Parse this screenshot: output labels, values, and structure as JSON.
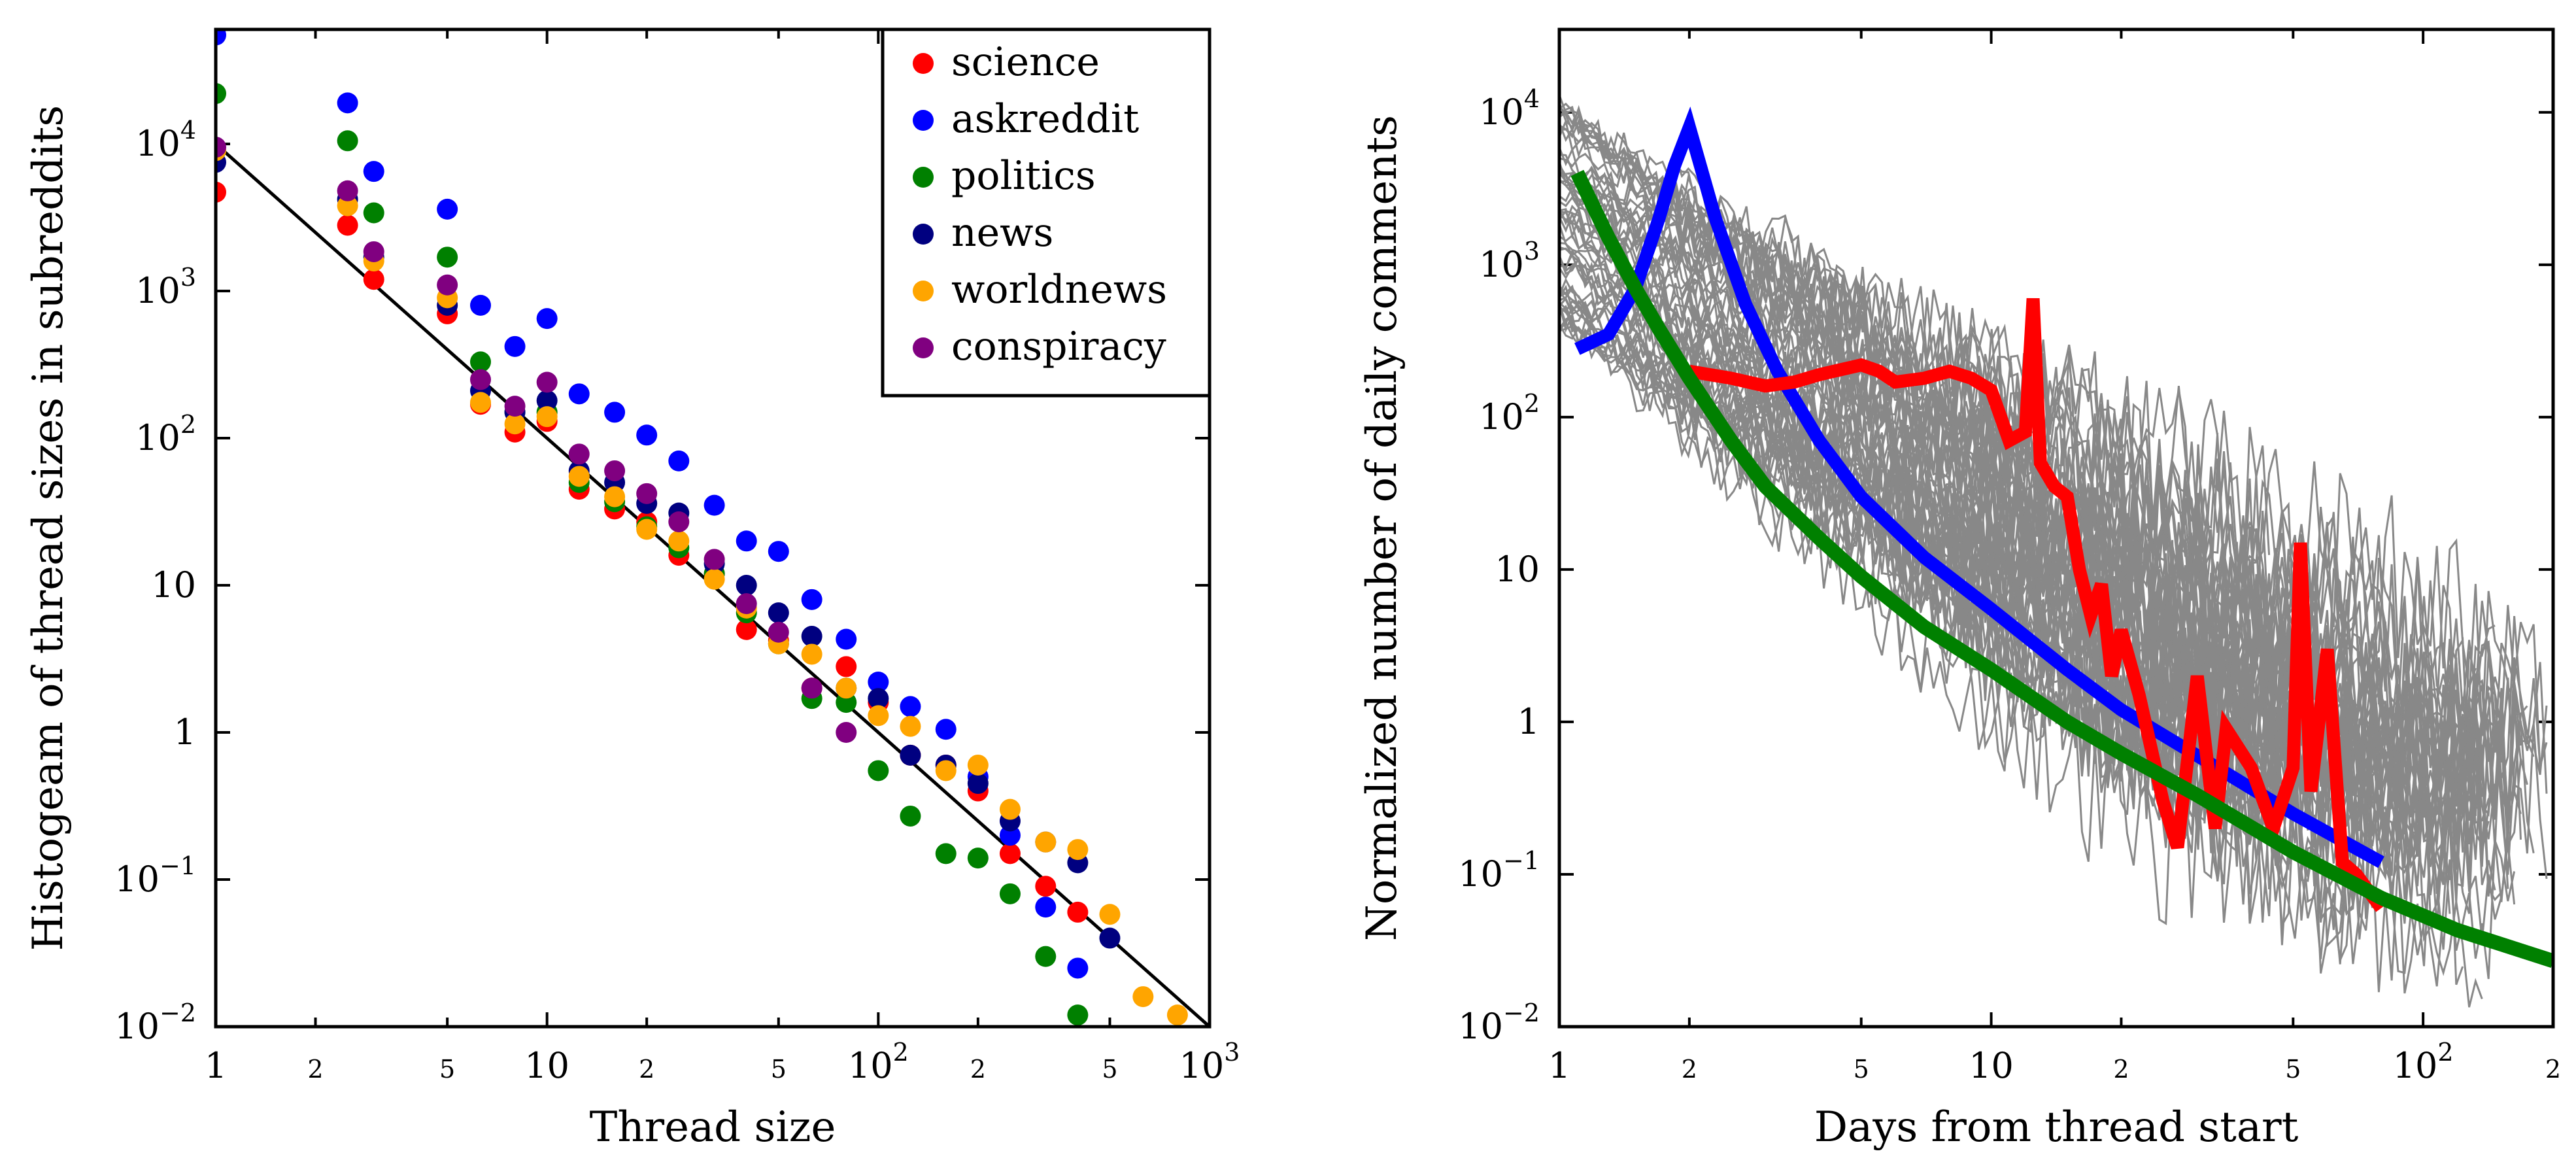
{
  "chart_data": [
    {
      "type": "scatter",
      "title": "",
      "xlabel": "Thread size",
      "ylabel": "Histogeam of thread sizes in subreddits",
      "xscale": "log",
      "yscale": "log",
      "xlim": [
        1,
        1000
      ],
      "ylim": [
        0.01,
        60000
      ],
      "x_ticks": [
        {
          "value": 1,
          "label": "1",
          "base": "",
          "exp": "",
          "major": true
        },
        {
          "value": 2,
          "label": "2",
          "base": "",
          "exp": "",
          "major": false
        },
        {
          "value": 5,
          "label": "5",
          "base": "",
          "exp": "",
          "major": false
        },
        {
          "value": 10,
          "label": "10",
          "base": "",
          "exp": "",
          "major": true
        },
        {
          "value": 20,
          "label": "2",
          "base": "",
          "exp": "",
          "major": false
        },
        {
          "value": 50,
          "label": "5",
          "base": "",
          "exp": "",
          "major": false
        },
        {
          "value": 100,
          "label": "",
          "base": "10",
          "exp": "2",
          "major": true
        },
        {
          "value": 200,
          "label": "2",
          "base": "",
          "exp": "",
          "major": false
        },
        {
          "value": 500,
          "label": "5",
          "base": "",
          "exp": "",
          "major": false
        },
        {
          "value": 1000,
          "label": "",
          "base": "10",
          "exp": "3",
          "major": true
        }
      ],
      "y_ticks": [
        {
          "value": 0.01,
          "label": "",
          "base": "10",
          "exp": "−2"
        },
        {
          "value": 0.1,
          "label": "",
          "base": "10",
          "exp": "−1"
        },
        {
          "value": 1,
          "label": "1",
          "base": "",
          "exp": ""
        },
        {
          "value": 10,
          "label": "10",
          "base": "",
          "exp": ""
        },
        {
          "value": 100,
          "label": "",
          "base": "10",
          "exp": "2"
        },
        {
          "value": 1000,
          "label": "",
          "base": "10",
          "exp": "3"
        },
        {
          "value": 10000,
          "label": "",
          "base": "10",
          "exp": "4"
        }
      ],
      "fit_line": {
        "x": [
          1,
          1000
        ],
        "y": [
          10000,
          0.01
        ],
        "color": "#000000"
      },
      "legend": {
        "position": "top-right"
      },
      "series": [
        {
          "name": "science",
          "color": "#ff0000",
          "x": [
            1,
            2.5,
            3,
            5,
            6.3,
            8,
            10,
            12.5,
            16,
            20,
            25,
            32,
            40,
            50,
            63,
            80,
            100,
            125,
            160,
            200,
            250,
            320,
            400
          ],
          "y": [
            4700,
            2800,
            1200,
            700,
            170,
            110,
            130,
            45,
            33,
            27,
            16,
            12,
            5,
            4.2,
            2,
            2.8,
            1.6,
            0.7,
            0.6,
            0.4,
            0.15,
            0.09,
            0.06
          ]
        },
        {
          "name": "askreddit",
          "color": "#0000ff",
          "x": [
            1,
            2.5,
            3,
            5,
            6.3,
            8,
            10,
            12.5,
            16,
            20,
            25,
            32,
            40,
            50,
            63,
            80,
            100,
            125,
            160,
            200,
            250,
            320,
            400
          ],
          "y": [
            55000,
            19000,
            6500,
            3600,
            800,
            420,
            650,
            200,
            150,
            105,
            70,
            35,
            20,
            17,
            8,
            4.3,
            2.2,
            1.5,
            1.05,
            0.5,
            0.2,
            0.065,
            0.025
          ]
        },
        {
          "name": "politics",
          "color": "#008000",
          "x": [
            1,
            2.5,
            3,
            5,
            6.3,
            8,
            10,
            12.5,
            16,
            20,
            25,
            32,
            40,
            50,
            63,
            80,
            100,
            125,
            160,
            200,
            250,
            320,
            400
          ],
          "y": [
            22000,
            10500,
            3400,
            1700,
            330,
            150,
            150,
            50,
            37,
            25,
            18,
            12,
            6.5,
            4,
            1.7,
            1.6,
            0.55,
            0.27,
            0.15,
            0.14,
            0.08,
            0.03,
            0.012
          ]
        },
        {
          "name": "news",
          "color": "#000080",
          "x": [
            1,
            2.5,
            3,
            5,
            6.3,
            8,
            10,
            12.5,
            16,
            20,
            25,
            32,
            40,
            50,
            63,
            80,
            100,
            125,
            160,
            200,
            250,
            320,
            400,
            500
          ],
          "y": [
            7500,
            4200,
            1700,
            800,
            210,
            150,
            180,
            60,
            50,
            36,
            31,
            14,
            10,
            6.5,
            4.5,
            2,
            1.7,
            0.7,
            0.6,
            0.45,
            0.25,
            0.18,
            0.13,
            0.04
          ]
        },
        {
          "name": "worldnews",
          "color": "#ffa500",
          "x": [
            1,
            2.5,
            3,
            5,
            6.3,
            8,
            10,
            12.5,
            16,
            20,
            25,
            32,
            40,
            50,
            63,
            80,
            100,
            125,
            160,
            200,
            250,
            320,
            400,
            500,
            630,
            800
          ],
          "y": [
            9000,
            3800,
            1600,
            900,
            175,
            125,
            140,
            55,
            40,
            24,
            20,
            11,
            7,
            4,
            3.4,
            2,
            1.3,
            1.1,
            0.55,
            0.6,
            0.3,
            0.18,
            0.16,
            0.058,
            0.016,
            0.012
          ]
        },
        {
          "name": "conspiracy",
          "color": "#800080",
          "x": [
            1,
            2.5,
            3,
            5,
            6.3,
            8,
            10,
            12.5,
            16,
            20,
            25,
            32,
            40,
            50,
            63,
            80
          ],
          "y": [
            9500,
            4800,
            1850,
            1100,
            250,
            165,
            240,
            78,
            60,
            42,
            27,
            15,
            7.5,
            4.8,
            2,
            1
          ]
        }
      ]
    },
    {
      "type": "line",
      "title": "",
      "xlabel": "Days from thread start",
      "ylabel": "Normalized number of daily comments",
      "xscale": "log",
      "yscale": "log",
      "xlim": [
        1,
        200
      ],
      "ylim": [
        0.01,
        35000
      ],
      "x_ticks": [
        {
          "value": 1,
          "label": "1",
          "base": "",
          "exp": "",
          "major": true
        },
        {
          "value": 2,
          "label": "2",
          "base": "",
          "exp": "",
          "major": false
        },
        {
          "value": 5,
          "label": "5",
          "base": "",
          "exp": "",
          "major": false
        },
        {
          "value": 10,
          "label": "10",
          "base": "",
          "exp": "",
          "major": true
        },
        {
          "value": 20,
          "label": "2",
          "base": "",
          "exp": "",
          "major": false
        },
        {
          "value": 50,
          "label": "5",
          "base": "",
          "exp": "",
          "major": false
        },
        {
          "value": 100,
          "label": "",
          "base": "10",
          "exp": "2",
          "major": true
        },
        {
          "value": 200,
          "label": "2",
          "base": "",
          "exp": "",
          "major": false
        }
      ],
      "y_ticks": [
        {
          "value": 0.01,
          "label": "",
          "base": "10",
          "exp": "−2"
        },
        {
          "value": 0.1,
          "label": "",
          "base": "10",
          "exp": "−1"
        },
        {
          "value": 1,
          "label": "1",
          "base": "",
          "exp": ""
        },
        {
          "value": 10,
          "label": "10",
          "base": "",
          "exp": ""
        },
        {
          "value": 100,
          "label": "",
          "base": "10",
          "exp": "2"
        },
        {
          "value": 1000,
          "label": "",
          "base": "10",
          "exp": "3"
        },
        {
          "value": 10000,
          "label": "",
          "base": "10",
          "exp": "4"
        }
      ],
      "background_series": {
        "name": "individual threads",
        "color": "#888888",
        "count": 60,
        "description": "many gray per-thread curves decaying from ~1e3-1e4 at day 1 to ~0.01-1 after 100 days"
      },
      "series": [
        {
          "name": "blue",
          "color": "#0000ff",
          "x": [
            1.1,
            1.3,
            1.5,
            1.7,
            1.85,
            2,
            2.3,
            2.7,
            3.2,
            4,
            5,
            7,
            10,
            15,
            20,
            30,
            50,
            80
          ],
          "y": [
            280,
            350,
            700,
            2000,
            4500,
            8000,
            2000,
            550,
            200,
            70,
            30,
            12,
            5.5,
            2.2,
            1.2,
            0.6,
            0.25,
            0.12
          ]
        },
        {
          "name": "red",
          "color": "#ff0000",
          "x": [
            2,
            2.5,
            3,
            3.5,
            4,
            5,
            5.5,
            6,
            7,
            8,
            9,
            10,
            11,
            12,
            12.5,
            13,
            14,
            15,
            16,
            17,
            18,
            19,
            20,
            22,
            25,
            27,
            30,
            33,
            35,
            40,
            45,
            50,
            52,
            55,
            60,
            65,
            70,
            80
          ],
          "y": [
            200,
            180,
            160,
            170,
            190,
            220,
            200,
            170,
            180,
            200,
            180,
            150,
            70,
            80,
            600,
            50,
            35,
            30,
            10,
            5,
            8,
            2,
            4,
            1.5,
            0.3,
            0.15,
            2,
            0.2,
            0.9,
            0.5,
            0.2,
            0.5,
            15,
            0.35,
            3,
            0.12,
            0.1,
            0.06
          ]
        },
        {
          "name": "green",
          "color": "#008000",
          "x": [
            1.1,
            1.3,
            1.5,
            1.7,
            2,
            2.5,
            3,
            4,
            5,
            7,
            10,
            15,
            20,
            30,
            50,
            80,
            120,
            200
          ],
          "y": [
            4000,
            1500,
            700,
            380,
            180,
            70,
            35,
            16,
            9,
            4.2,
            2.2,
            1,
            0.62,
            0.33,
            0.14,
            0.07,
            0.043,
            0.027
          ]
        }
      ]
    }
  ]
}
